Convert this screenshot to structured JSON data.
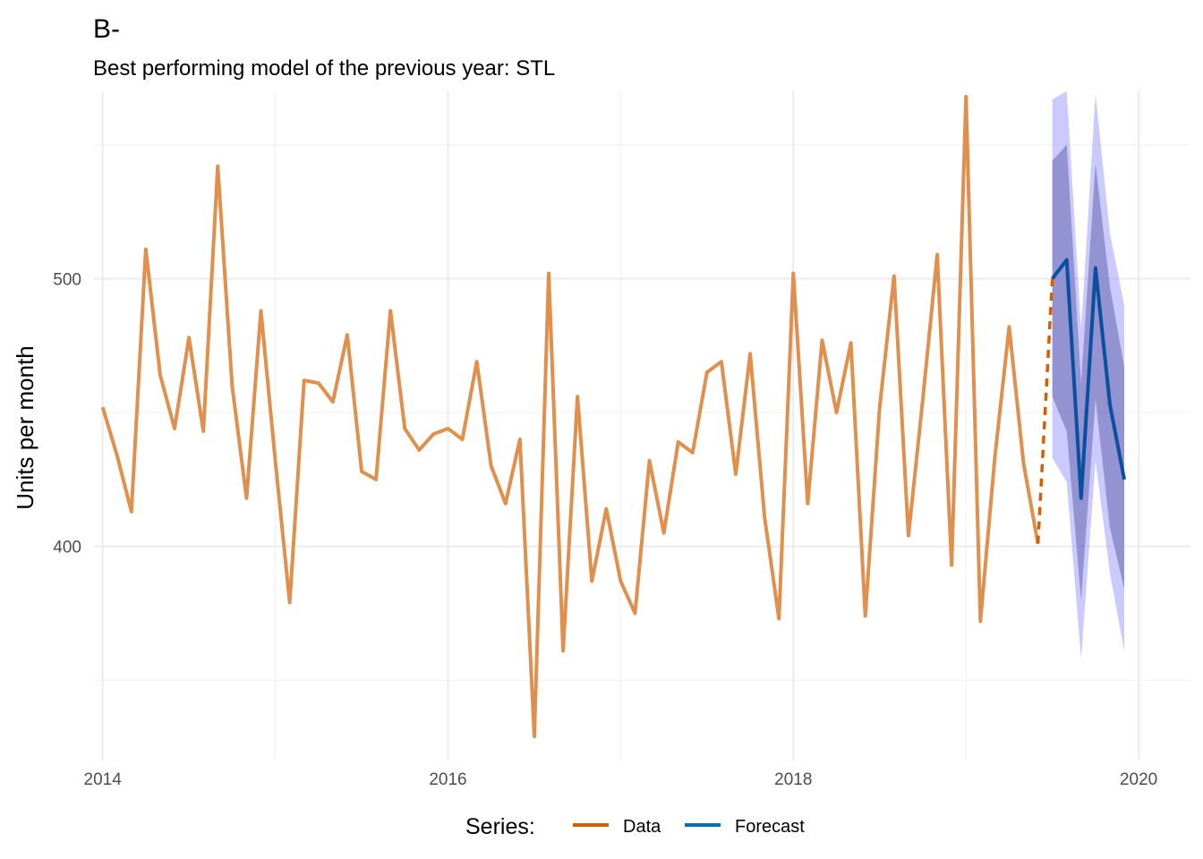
{
  "chart_data": {
    "type": "line",
    "title": "B-",
    "subtitle": "Best performing model of the previous year: STL",
    "xlabel": "",
    "ylabel": "Units per month",
    "xlim": [
      2013.95,
      2020.3
    ],
    "ylim": [
      320,
      570
    ],
    "x_ticks": [
      2014,
      2016,
      2018,
      2020
    ],
    "x_tick_labels": [
      "2014",
      "2016",
      "2018",
      "2020"
    ],
    "y_ticks": [
      400,
      500
    ],
    "y_tick_labels": [
      "400",
      "500"
    ],
    "grid": true,
    "legend": {
      "title": "Series:",
      "position": "bottom",
      "entries": [
        {
          "label": "Data",
          "color": "#D55E00"
        },
        {
          "label": "Forecast",
          "color": "#0072B2"
        }
      ]
    },
    "series": [
      {
        "name": "Data",
        "color": "#E08F4C",
        "start": [
          2014,
          1
        ],
        "values": [
          452,
          434,
          413,
          511,
          464,
          444,
          478,
          443,
          542,
          460,
          418,
          488,
          432,
          379,
          462,
          461,
          454,
          479,
          428,
          425,
          488,
          444,
          436,
          442,
          444,
          440,
          469,
          430,
          416,
          440,
          329,
          502,
          361,
          456,
          387,
          414,
          387,
          375,
          432,
          405,
          439,
          435,
          465,
          469,
          427,
          472,
          411,
          373,
          502,
          416,
          477,
          450,
          476,
          374,
          452,
          501,
          404,
          455,
          509,
          393,
          568,
          372,
          433,
          482,
          431,
          401
        ]
      },
      {
        "name": "Data (gap)",
        "color": "#D55E00",
        "dashed": true,
        "x": [
          "2019-06",
          "2019-07"
        ],
        "values": [
          401,
          500
        ]
      },
      {
        "name": "Forecast",
        "color": "#0B4FA0",
        "start": [
          2019,
          7
        ],
        "values": [
          500,
          507,
          418,
          504,
          453,
          425
        ],
        "lower80": [
          456,
          443,
          380,
          455,
          407,
          384
        ],
        "upper80": [
          544,
          550,
          461,
          543,
          497,
          467
        ],
        "lower95": [
          433,
          424,
          358,
          432,
          390,
          361
        ],
        "upper95": [
          567,
          570,
          481,
          569,
          517,
          490
        ]
      }
    ]
  }
}
